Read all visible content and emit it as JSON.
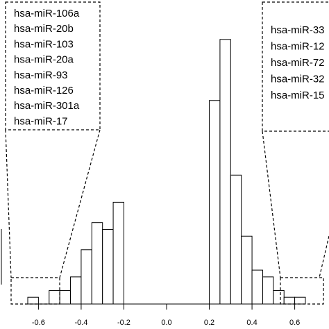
{
  "chart_data": {
    "type": "bar",
    "xlim": [
      -0.65,
      0.65
    ],
    "ylim": [
      0,
      40
    ],
    "xticks": [
      "-0.6",
      "-0.4",
      "-0.2",
      "0.0",
      "0.2",
      "0.4",
      "0.6"
    ],
    "bins": [
      {
        "x0": -0.65,
        "x1": -0.6,
        "count": 1
      },
      {
        "x0": -0.6,
        "x1": -0.55,
        "count": 0
      },
      {
        "x0": -0.55,
        "x1": -0.5,
        "count": 2
      },
      {
        "x0": -0.5,
        "x1": -0.45,
        "count": 2
      },
      {
        "x0": -0.45,
        "x1": -0.4,
        "count": 4
      },
      {
        "x0": -0.4,
        "x1": -0.35,
        "count": 8
      },
      {
        "x0": -0.35,
        "x1": -0.3,
        "count": 12
      },
      {
        "x0": -0.3,
        "x1": -0.25,
        "count": 11
      },
      {
        "x0": -0.25,
        "x1": -0.2,
        "count": 15
      },
      {
        "x0": 0.2,
        "x1": 0.25,
        "count": 30
      },
      {
        "x0": 0.25,
        "x1": 0.3,
        "count": 39
      },
      {
        "x0": 0.3,
        "x1": 0.35,
        "count": 19
      },
      {
        "x0": 0.35,
        "x1": 0.4,
        "count": 10
      },
      {
        "x0": 0.4,
        "x1": 0.45,
        "count": 5
      },
      {
        "x0": 0.45,
        "x1": 0.5,
        "count": 4
      },
      {
        "x0": 0.5,
        "x1": 0.55,
        "count": 2
      },
      {
        "x0": 0.55,
        "x1": 0.6,
        "count": 1
      },
      {
        "x0": 0.6,
        "x1": 0.65,
        "count": 1
      }
    ],
    "annotations": {
      "left_labels": [
        "hsa-miR-106a",
        "hsa-miR-20b",
        "hsa-miR-103",
        "hsa-miR-20a",
        "hsa-miR-93",
        "hsa-miR-126",
        "hsa-miR-301a",
        "hsa-miR-17"
      ],
      "right_labels": [
        "hsa-miR-33",
        "hsa-miR-12",
        "hsa-miR-72",
        "hsa-miR-32",
        "hsa-miR-15"
      ]
    }
  }
}
